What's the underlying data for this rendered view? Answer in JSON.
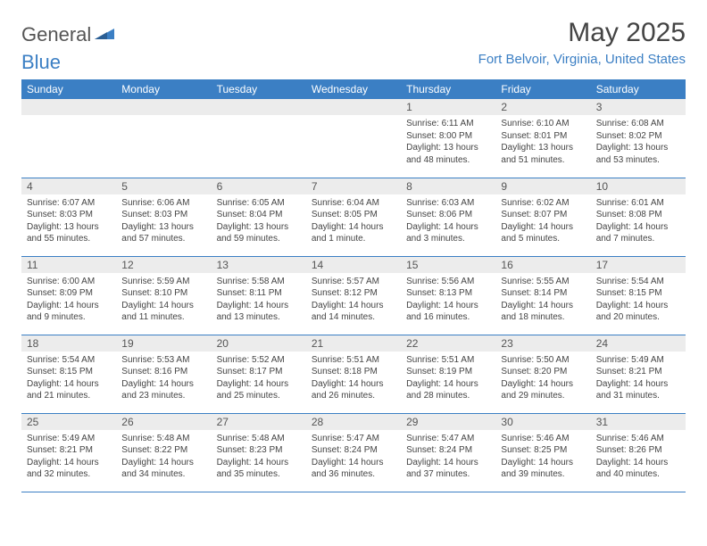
{
  "brand": {
    "word1": "General",
    "word2": "Blue"
  },
  "title": "May 2025",
  "location": "Fort Belvoir, Virginia, United States",
  "colors": {
    "header_bg": "#3b7fc4",
    "header_fg": "#ffffff",
    "daynum_bg": "#ececec",
    "grid_border": "#3b7fc4",
    "text": "#444444",
    "brand_gray": "#555555",
    "brand_blue": "#3b7fc4"
  },
  "weekdays": [
    "Sunday",
    "Monday",
    "Tuesday",
    "Wednesday",
    "Thursday",
    "Friday",
    "Saturday"
  ],
  "weeks": [
    [
      null,
      null,
      null,
      null,
      {
        "n": "1",
        "sr": "6:11 AM",
        "ss": "8:00 PM",
        "dl": "13 hours and 48 minutes."
      },
      {
        "n": "2",
        "sr": "6:10 AM",
        "ss": "8:01 PM",
        "dl": "13 hours and 51 minutes."
      },
      {
        "n": "3",
        "sr": "6:08 AM",
        "ss": "8:02 PM",
        "dl": "13 hours and 53 minutes."
      }
    ],
    [
      {
        "n": "4",
        "sr": "6:07 AM",
        "ss": "8:03 PM",
        "dl": "13 hours and 55 minutes."
      },
      {
        "n": "5",
        "sr": "6:06 AM",
        "ss": "8:03 PM",
        "dl": "13 hours and 57 minutes."
      },
      {
        "n": "6",
        "sr": "6:05 AM",
        "ss": "8:04 PM",
        "dl": "13 hours and 59 minutes."
      },
      {
        "n": "7",
        "sr": "6:04 AM",
        "ss": "8:05 PM",
        "dl": "14 hours and 1 minute."
      },
      {
        "n": "8",
        "sr": "6:03 AM",
        "ss": "8:06 PM",
        "dl": "14 hours and 3 minutes."
      },
      {
        "n": "9",
        "sr": "6:02 AM",
        "ss": "8:07 PM",
        "dl": "14 hours and 5 minutes."
      },
      {
        "n": "10",
        "sr": "6:01 AM",
        "ss": "8:08 PM",
        "dl": "14 hours and 7 minutes."
      }
    ],
    [
      {
        "n": "11",
        "sr": "6:00 AM",
        "ss": "8:09 PM",
        "dl": "14 hours and 9 minutes."
      },
      {
        "n": "12",
        "sr": "5:59 AM",
        "ss": "8:10 PM",
        "dl": "14 hours and 11 minutes."
      },
      {
        "n": "13",
        "sr": "5:58 AM",
        "ss": "8:11 PM",
        "dl": "14 hours and 13 minutes."
      },
      {
        "n": "14",
        "sr": "5:57 AM",
        "ss": "8:12 PM",
        "dl": "14 hours and 14 minutes."
      },
      {
        "n": "15",
        "sr": "5:56 AM",
        "ss": "8:13 PM",
        "dl": "14 hours and 16 minutes."
      },
      {
        "n": "16",
        "sr": "5:55 AM",
        "ss": "8:14 PM",
        "dl": "14 hours and 18 minutes."
      },
      {
        "n": "17",
        "sr": "5:54 AM",
        "ss": "8:15 PM",
        "dl": "14 hours and 20 minutes."
      }
    ],
    [
      {
        "n": "18",
        "sr": "5:54 AM",
        "ss": "8:15 PM",
        "dl": "14 hours and 21 minutes."
      },
      {
        "n": "19",
        "sr": "5:53 AM",
        "ss": "8:16 PM",
        "dl": "14 hours and 23 minutes."
      },
      {
        "n": "20",
        "sr": "5:52 AM",
        "ss": "8:17 PM",
        "dl": "14 hours and 25 minutes."
      },
      {
        "n": "21",
        "sr": "5:51 AM",
        "ss": "8:18 PM",
        "dl": "14 hours and 26 minutes."
      },
      {
        "n": "22",
        "sr": "5:51 AM",
        "ss": "8:19 PM",
        "dl": "14 hours and 28 minutes."
      },
      {
        "n": "23",
        "sr": "5:50 AM",
        "ss": "8:20 PM",
        "dl": "14 hours and 29 minutes."
      },
      {
        "n": "24",
        "sr": "5:49 AM",
        "ss": "8:21 PM",
        "dl": "14 hours and 31 minutes."
      }
    ],
    [
      {
        "n": "25",
        "sr": "5:49 AM",
        "ss": "8:21 PM",
        "dl": "14 hours and 32 minutes."
      },
      {
        "n": "26",
        "sr": "5:48 AM",
        "ss": "8:22 PM",
        "dl": "14 hours and 34 minutes."
      },
      {
        "n": "27",
        "sr": "5:48 AM",
        "ss": "8:23 PM",
        "dl": "14 hours and 35 minutes."
      },
      {
        "n": "28",
        "sr": "5:47 AM",
        "ss": "8:24 PM",
        "dl": "14 hours and 36 minutes."
      },
      {
        "n": "29",
        "sr": "5:47 AM",
        "ss": "8:24 PM",
        "dl": "14 hours and 37 minutes."
      },
      {
        "n": "30",
        "sr": "5:46 AM",
        "ss": "8:25 PM",
        "dl": "14 hours and 39 minutes."
      },
      {
        "n": "31",
        "sr": "5:46 AM",
        "ss": "8:26 PM",
        "dl": "14 hours and 40 minutes."
      }
    ]
  ],
  "labels": {
    "sunrise": "Sunrise:",
    "sunset": "Sunset:",
    "daylight": "Daylight:"
  }
}
